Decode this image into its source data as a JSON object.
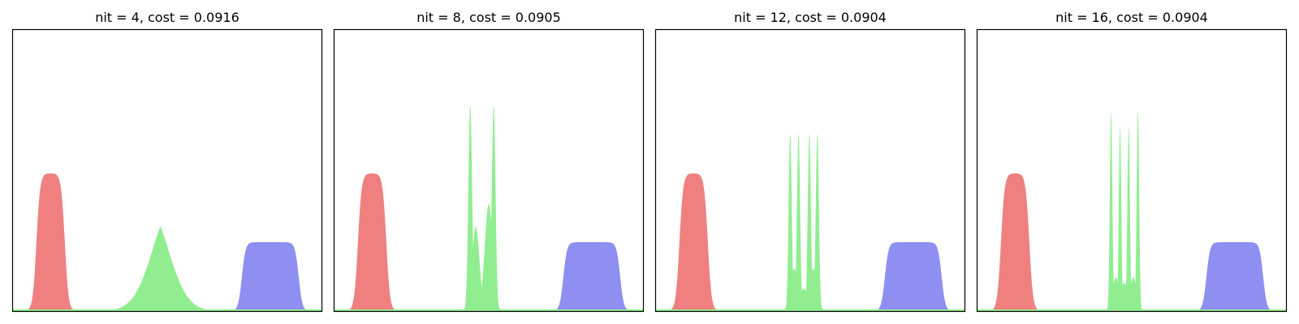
{
  "chart_data": [
    {
      "type": "area",
      "title": "nit = 4, cost = 0.0916",
      "xlim": [
        0,
        1
      ],
      "ylim": [
        0,
        1
      ],
      "axis_ticks": "off",
      "grid": "off",
      "series": [
        {
          "color": "#f08080",
          "kind": "plateau",
          "center": 0.122,
          "halfwidth": 0.046,
          "height": 0.49,
          "edge": 0.006
        },
        {
          "color": "#90ee90",
          "kind": "single-peak",
          "center": 0.478,
          "width": 0.07,
          "height": 0.3,
          "skew": 0.82
        },
        {
          "color": "#8f8ff2",
          "kind": "plateau",
          "center": 0.834,
          "halfwidth": 0.092,
          "height": 0.245,
          "edge": 0.006
        }
      ]
    },
    {
      "type": "area",
      "title": "nit = 8, cost = 0.0905",
      "xlim": [
        0,
        1
      ],
      "ylim": [
        0,
        1
      ],
      "axis_ticks": "off",
      "grid": "off",
      "series": [
        {
          "color": "#f08080",
          "kind": "plateau",
          "center": 0.122,
          "halfwidth": 0.046,
          "height": 0.49,
          "edge": 0.006
        },
        {
          "color": "#90ee90",
          "kind": "multi-peak",
          "peaks": [
            {
              "x": 0.44,
              "h": 0.73,
              "w": 0.006
            },
            {
              "x": 0.516,
              "h": 0.73,
              "w": 0.006
            },
            {
              "x": 0.458,
              "h": 0.3,
              "w": 0.012
            },
            {
              "x": 0.5,
              "h": 0.38,
              "w": 0.013
            },
            {
              "x": 0.478,
              "h": 0.05,
              "w": 0.03
            }
          ]
        },
        {
          "color": "#8f8ff2",
          "kind": "plateau",
          "center": 0.834,
          "halfwidth": 0.092,
          "height": 0.245,
          "edge": 0.006
        }
      ]
    },
    {
      "type": "area",
      "title": "nit = 12, cost = 0.0904",
      "xlim": [
        0,
        1
      ],
      "ylim": [
        0,
        1
      ],
      "axis_ticks": "off",
      "grid": "off",
      "series": [
        {
          "color": "#f08080",
          "kind": "plateau",
          "center": 0.122,
          "halfwidth": 0.046,
          "height": 0.49,
          "edge": 0.006
        },
        {
          "color": "#90ee90",
          "kind": "multi-peak",
          "peaks": [
            {
              "x": 0.435,
              "h": 0.63,
              "w": 0.005
            },
            {
              "x": 0.462,
              "h": 0.63,
              "w": 0.005
            },
            {
              "x": 0.497,
              "h": 0.63,
              "w": 0.005
            },
            {
              "x": 0.523,
              "h": 0.63,
              "w": 0.005
            },
            {
              "x": 0.448,
              "h": 0.15,
              "w": 0.012
            },
            {
              "x": 0.479,
              "h": 0.08,
              "w": 0.014
            },
            {
              "x": 0.51,
              "h": 0.15,
              "w": 0.012
            }
          ]
        },
        {
          "color": "#8f8ff2",
          "kind": "plateau",
          "center": 0.834,
          "halfwidth": 0.092,
          "height": 0.245,
          "edge": 0.006
        }
      ]
    },
    {
      "type": "area",
      "title": "nit = 16, cost = 0.0904",
      "xlim": [
        0,
        1
      ],
      "ylim": [
        0,
        1
      ],
      "axis_ticks": "off",
      "grid": "off",
      "series": [
        {
          "color": "#f08080",
          "kind": "plateau",
          "center": 0.122,
          "halfwidth": 0.046,
          "height": 0.49,
          "edge": 0.006
        },
        {
          "color": "#90ee90",
          "kind": "multi-peak",
          "peaks": [
            {
              "x": 0.433,
              "h": 0.71,
              "w": 0.004
            },
            {
              "x": 0.462,
              "h": 0.66,
              "w": 0.004
            },
            {
              "x": 0.49,
              "h": 0.66,
              "w": 0.004
            },
            {
              "x": 0.52,
              "h": 0.71,
              "w": 0.004
            },
            {
              "x": 0.448,
              "h": 0.12,
              "w": 0.01
            },
            {
              "x": 0.476,
              "h": 0.1,
              "w": 0.012
            },
            {
              "x": 0.505,
              "h": 0.12,
              "w": 0.01
            }
          ]
        },
        {
          "color": "#8f8ff2",
          "kind": "plateau",
          "center": 0.834,
          "halfwidth": 0.092,
          "height": 0.245,
          "edge": 0.006
        }
      ]
    }
  ]
}
